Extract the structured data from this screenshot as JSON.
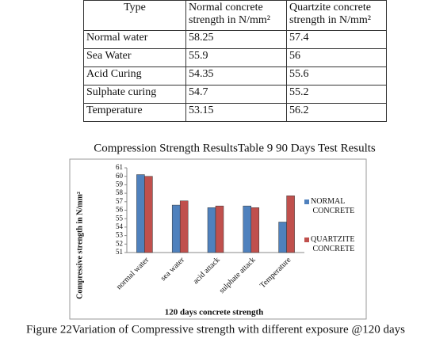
{
  "table": {
    "header": [
      "Type",
      "Normal concrete strength in N/mm²",
      "Quartzite concrete strength in N/mm²"
    ],
    "rows": [
      [
        "Normal water",
        "58.25",
        "57.4"
      ],
      [
        "Sea Water",
        "55.9",
        "56"
      ],
      [
        "Acid Curing",
        "54.35",
        "55.6"
      ],
      [
        "Sulphate curing",
        "54.7",
        "55.2"
      ],
      [
        "Temperature",
        "53.15",
        "56.2"
      ]
    ]
  },
  "table_caption": "Compression Strength ResultsTable 9 90  Days Test Results",
  "chart_data": {
    "type": "bar",
    "ylabel": "Compressive strength in N/mm²",
    "xlabel": "120 days concrete strength",
    "categories": [
      "normal water",
      "sea water",
      "acid attack",
      "sulphate attack",
      "Temperature"
    ],
    "series": [
      {
        "name": "NORMAL CONCRETE",
        "color": "#4f81bd",
        "values": [
          60.2,
          56.6,
          56.3,
          56.5,
          54.6
        ]
      },
      {
        "name": "QUARTZITE CONCRETE",
        "color": "#c0504d",
        "values": [
          60.0,
          57.1,
          56.5,
          56.3,
          57.7
        ]
      }
    ],
    "ylim": [
      51,
      61
    ],
    "yticks": [
      51,
      52,
      53,
      54,
      55,
      56,
      57,
      58,
      59,
      60,
      61
    ],
    "legend": "right"
  },
  "figure_caption": "Figure 22Variation of Compressive strength with different exposure @120 days"
}
